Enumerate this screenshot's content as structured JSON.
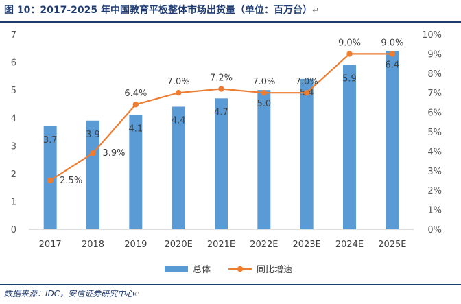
{
  "figure": {
    "title": "图 10：2017-2025 年中国教育平板整体市场出货量（单位：百万台）",
    "return_mark": "↵",
    "source": "数据来源：IDC，安信证券研究中心",
    "source_return_mark": "↵"
  },
  "chart_data": {
    "type": "bar+line",
    "title": "2017-2025 年中国教育平板整体市场出货量（单位：百万台）",
    "categories": [
      "2017",
      "2018",
      "2019",
      "2020E",
      "2021E",
      "2022E",
      "2023E",
      "2024E",
      "2025E"
    ],
    "series": [
      {
        "name": "总体",
        "type": "bar",
        "axis": "left",
        "values": [
          3.7,
          3.9,
          4.1,
          4.4,
          4.7,
          5.0,
          5.4,
          5.9,
          6.4
        ],
        "labels": [
          "3.7",
          "3.9",
          "4.1",
          "4.4",
          "4.7",
          "5.0",
          "5.4",
          "5.9",
          "6.4"
        ],
        "color": "#5b9bd5"
      },
      {
        "name": "同比增速",
        "type": "line",
        "axis": "right",
        "values": [
          2.5,
          3.9,
          6.4,
          7.0,
          7.2,
          7.0,
          7.0,
          9.0,
          9.0
        ],
        "labels": [
          "2.5%",
          "3.9%",
          "6.4%",
          "7.0%",
          "7.2%",
          "7.0%",
          "7.0%",
          "9.0%",
          "9.0%"
        ],
        "color": "#ed7d31"
      }
    ],
    "y_left": {
      "min": 0,
      "max": 7,
      "ticks": [
        "0",
        "1",
        "2",
        "3",
        "4",
        "5",
        "6",
        "7"
      ]
    },
    "y_right": {
      "min": 0,
      "max": 10,
      "ticks": [
        "0%",
        "1%",
        "2%",
        "3%",
        "4%",
        "5%",
        "6%",
        "7%",
        "8%",
        "9%",
        "10%"
      ]
    },
    "grid": false,
    "legend_position": "bottom"
  }
}
